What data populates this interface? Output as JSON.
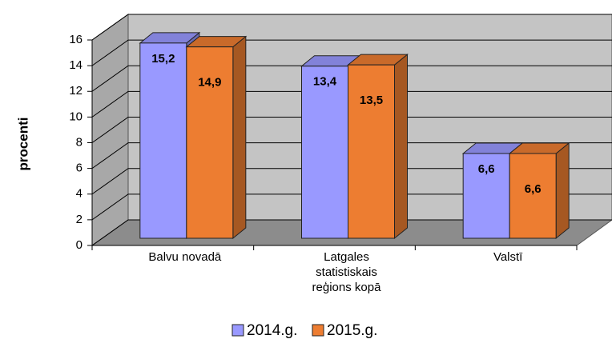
{
  "chart_data": {
    "type": "bar3d",
    "ylabel": "procenti",
    "categories": [
      "Balvu novadā",
      "Latgales statistiskais reģions kopā",
      "Valstī"
    ],
    "series": [
      {
        "name": "2014.g.",
        "color": "#9999ff",
        "values": [
          15.2,
          13.4,
          6.6
        ],
        "value_labels": [
          "15,2",
          "13,4",
          "6,6"
        ]
      },
      {
        "name": "2015.g.",
        "color": "#ed7d31",
        "values": [
          14.9,
          13.5,
          6.6
        ],
        "value_labels": [
          "14,9",
          "13,5",
          "6,6"
        ]
      }
    ],
    "ylim": [
      0,
      16
    ],
    "yticks": [
      0,
      2,
      4,
      6,
      8,
      10,
      12,
      14,
      16
    ],
    "grid": true,
    "legend": "bottom"
  }
}
